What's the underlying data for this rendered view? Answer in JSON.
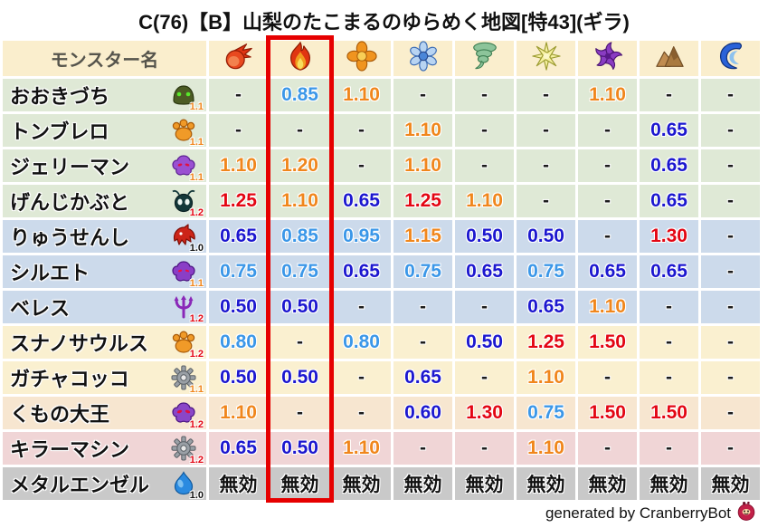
{
  "title": "C(76)【B】山梨のたこまるのゆらめく地図[特43](ギラ)",
  "highlight": {
    "column_index": 1,
    "color": "#e60000"
  },
  "table": {
    "name_header": "モンスター名",
    "columns": [
      {
        "icon": "fireball"
      },
      {
        "icon": "flame"
      },
      {
        "icon": "explosion"
      },
      {
        "icon": "snowflake"
      },
      {
        "icon": "tornado"
      },
      {
        "icon": "spark"
      },
      {
        "icon": "pinwheel"
      },
      {
        "icon": "mountain"
      },
      {
        "icon": "wave"
      }
    ],
    "rows": [
      {
        "name": "おおきづち",
        "icon": "green-helmet",
        "multiplier": "1.1",
        "multiplier_color": "orange",
        "row_color": "green",
        "values": [
          [
            "-",
            "dash"
          ],
          [
            "0.85",
            "lb"
          ],
          [
            "1.10",
            "or"
          ],
          [
            "-",
            "dash"
          ],
          [
            "-",
            "dash"
          ],
          [
            "-",
            "dash"
          ],
          [
            "1.10",
            "or"
          ],
          [
            "-",
            "dash"
          ],
          [
            "-",
            "dash"
          ]
        ]
      },
      {
        "name": "トンブレロ",
        "icon": "paw",
        "multiplier": "1.1",
        "multiplier_color": "orange",
        "row_color": "green",
        "values": [
          [
            "-",
            "dash"
          ],
          [
            "-",
            "dash"
          ],
          [
            "-",
            "dash"
          ],
          [
            "1.10",
            "or"
          ],
          [
            "-",
            "dash"
          ],
          [
            "-",
            "dash"
          ],
          [
            "-",
            "dash"
          ],
          [
            "0.65",
            "db"
          ],
          [
            "-",
            "dash"
          ]
        ]
      },
      {
        "name": "ジェリーマン",
        "icon": "purple-jelly",
        "multiplier": "1.1",
        "multiplier_color": "orange",
        "row_color": "green",
        "values": [
          [
            "1.10",
            "or"
          ],
          [
            "1.20",
            "or"
          ],
          [
            "-",
            "dash"
          ],
          [
            "1.10",
            "or"
          ],
          [
            "-",
            "dash"
          ],
          [
            "-",
            "dash"
          ],
          [
            "-",
            "dash"
          ],
          [
            "0.65",
            "db"
          ],
          [
            "-",
            "dash"
          ]
        ]
      },
      {
        "name": "げんじかぶと",
        "icon": "beetle",
        "multiplier": "1.2",
        "multiplier_color": "red",
        "row_color": "green",
        "values": [
          [
            "1.25",
            "red"
          ],
          [
            "1.10",
            "or"
          ],
          [
            "0.65",
            "db"
          ],
          [
            "1.25",
            "red"
          ],
          [
            "1.10",
            "or"
          ],
          [
            "-",
            "dash"
          ],
          [
            "-",
            "dash"
          ],
          [
            "0.65",
            "db"
          ],
          [
            "-",
            "dash"
          ]
        ]
      },
      {
        "name": "りゅうせんし",
        "icon": "dragon",
        "multiplier": "1.0",
        "multiplier_color": "black",
        "row_color": "blue",
        "values": [
          [
            "0.65",
            "db"
          ],
          [
            "0.85",
            "lb"
          ],
          [
            "0.95",
            "lb"
          ],
          [
            "1.15",
            "or"
          ],
          [
            "0.50",
            "db"
          ],
          [
            "0.50",
            "db"
          ],
          [
            "-",
            "dash"
          ],
          [
            "1.30",
            "red"
          ],
          [
            "-",
            "dash"
          ]
        ]
      },
      {
        "name": "シルエト",
        "icon": "purple-shadow",
        "multiplier": "1.1",
        "multiplier_color": "orange",
        "row_color": "blue",
        "values": [
          [
            "0.75",
            "lb"
          ],
          [
            "0.75",
            "lb"
          ],
          [
            "0.65",
            "db"
          ],
          [
            "0.75",
            "lb"
          ],
          [
            "0.65",
            "db"
          ],
          [
            "0.75",
            "lb"
          ],
          [
            "0.65",
            "db"
          ],
          [
            "0.65",
            "db"
          ],
          [
            "-",
            "dash"
          ]
        ]
      },
      {
        "name": "ベレス",
        "icon": "trident",
        "multiplier": "1.2",
        "multiplier_color": "red",
        "row_color": "blue",
        "values": [
          [
            "0.50",
            "db"
          ],
          [
            "0.50",
            "db"
          ],
          [
            "-",
            "dash"
          ],
          [
            "-",
            "dash"
          ],
          [
            "-",
            "dash"
          ],
          [
            "0.65",
            "db"
          ],
          [
            "1.10",
            "or"
          ],
          [
            "-",
            "dash"
          ],
          [
            "-",
            "dash"
          ]
        ]
      },
      {
        "name": "スナノサウルス",
        "icon": "paw",
        "multiplier": "1.2",
        "multiplier_color": "red",
        "row_color": "cream",
        "values": [
          [
            "0.80",
            "lb"
          ],
          [
            "-",
            "dash"
          ],
          [
            "0.80",
            "lb"
          ],
          [
            "-",
            "dash"
          ],
          [
            "0.50",
            "db"
          ],
          [
            "1.25",
            "red"
          ],
          [
            "1.50",
            "red"
          ],
          [
            "-",
            "dash"
          ],
          [
            "-",
            "dash"
          ]
        ]
      },
      {
        "name": "ガチャコッコ",
        "icon": "gear",
        "multiplier": "1.1",
        "multiplier_color": "orange",
        "row_color": "cream",
        "values": [
          [
            "0.50",
            "db"
          ],
          [
            "0.50",
            "db"
          ],
          [
            "-",
            "dash"
          ],
          [
            "0.65",
            "db"
          ],
          [
            "-",
            "dash"
          ],
          [
            "1.10",
            "or"
          ],
          [
            "-",
            "dash"
          ],
          [
            "-",
            "dash"
          ],
          [
            "-",
            "dash"
          ]
        ]
      },
      {
        "name": "くもの大王",
        "icon": "purple-spider",
        "multiplier": "1.2",
        "multiplier_color": "red",
        "row_color": "peach",
        "values": [
          [
            "1.10",
            "or"
          ],
          [
            "-",
            "dash"
          ],
          [
            "-",
            "dash"
          ],
          [
            "0.60",
            "db"
          ],
          [
            "1.30",
            "red"
          ],
          [
            "0.75",
            "lb"
          ],
          [
            "1.50",
            "red"
          ],
          [
            "1.50",
            "red"
          ],
          [
            "-",
            "dash"
          ]
        ]
      },
      {
        "name": "キラーマシン",
        "icon": "gear",
        "multiplier": "1.2",
        "multiplier_color": "red",
        "row_color": "pink",
        "values": [
          [
            "0.65",
            "db"
          ],
          [
            "0.50",
            "db"
          ],
          [
            "1.10",
            "or"
          ],
          [
            "-",
            "dash"
          ],
          [
            "-",
            "dash"
          ],
          [
            "1.10",
            "or"
          ],
          [
            "-",
            "dash"
          ],
          [
            "-",
            "dash"
          ],
          [
            "-",
            "dash"
          ]
        ]
      },
      {
        "name": "メタルエンゼル",
        "icon": "slime",
        "multiplier": "1.0",
        "multiplier_color": "black",
        "row_color": "gray",
        "values": [
          [
            "無効",
            "imm"
          ],
          [
            "無効",
            "imm"
          ],
          [
            "無効",
            "imm"
          ],
          [
            "無効",
            "imm"
          ],
          [
            "無効",
            "imm"
          ],
          [
            "無効",
            "imm"
          ],
          [
            "無効",
            "imm"
          ],
          [
            "無効",
            "imm"
          ],
          [
            "無効",
            "imm"
          ]
        ]
      }
    ]
  },
  "footer": {
    "credit": "generated by CranberryBot",
    "icon": "cranberry"
  }
}
